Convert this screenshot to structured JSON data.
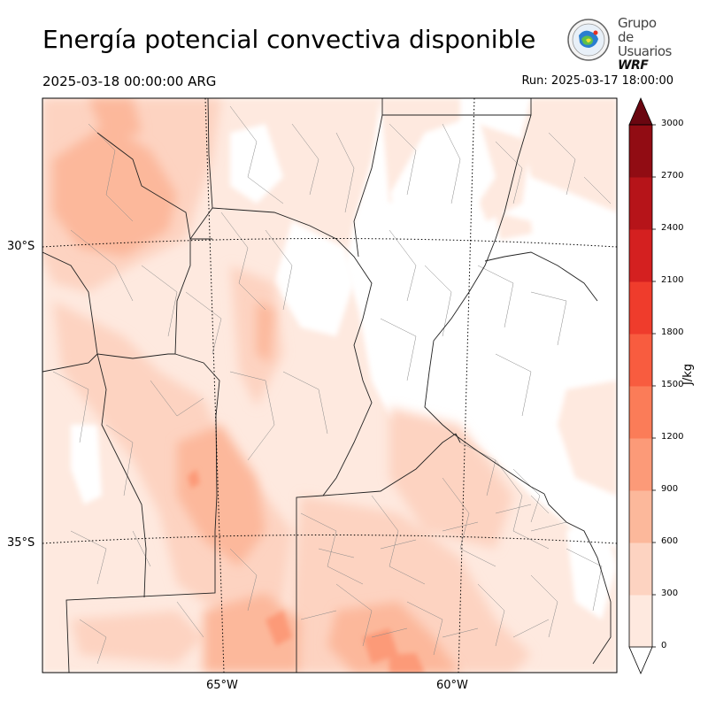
{
  "header": {
    "title": "Energía potencial convectiva disponible",
    "valid_time": "2025-03-18 00:00:00 ARG",
    "run": "Run: 2025-03-17 18:00:00"
  },
  "logo": {
    "line1": "Grupo de",
    "line2": "Usuarios",
    "line3": "WRF"
  },
  "map": {
    "lat_labels": [
      "30°S",
      "35°S"
    ],
    "lon_labels": [
      "65°W",
      "60°W"
    ]
  },
  "colorbar": {
    "unit": "J/kg",
    "ticks": [
      "0",
      "300",
      "600",
      "900",
      "1200",
      "1500",
      "1800",
      "2100",
      "2400",
      "2700",
      "3000"
    ],
    "colors": [
      "#fee9df",
      "#fdd3c1",
      "#fcb89b",
      "#fc9a78",
      "#fb7c58",
      "#f85c3f",
      "#ef3c2c",
      "#d42020",
      "#b61419",
      "#910c13",
      "#6a0610"
    ],
    "extend": "both"
  }
}
